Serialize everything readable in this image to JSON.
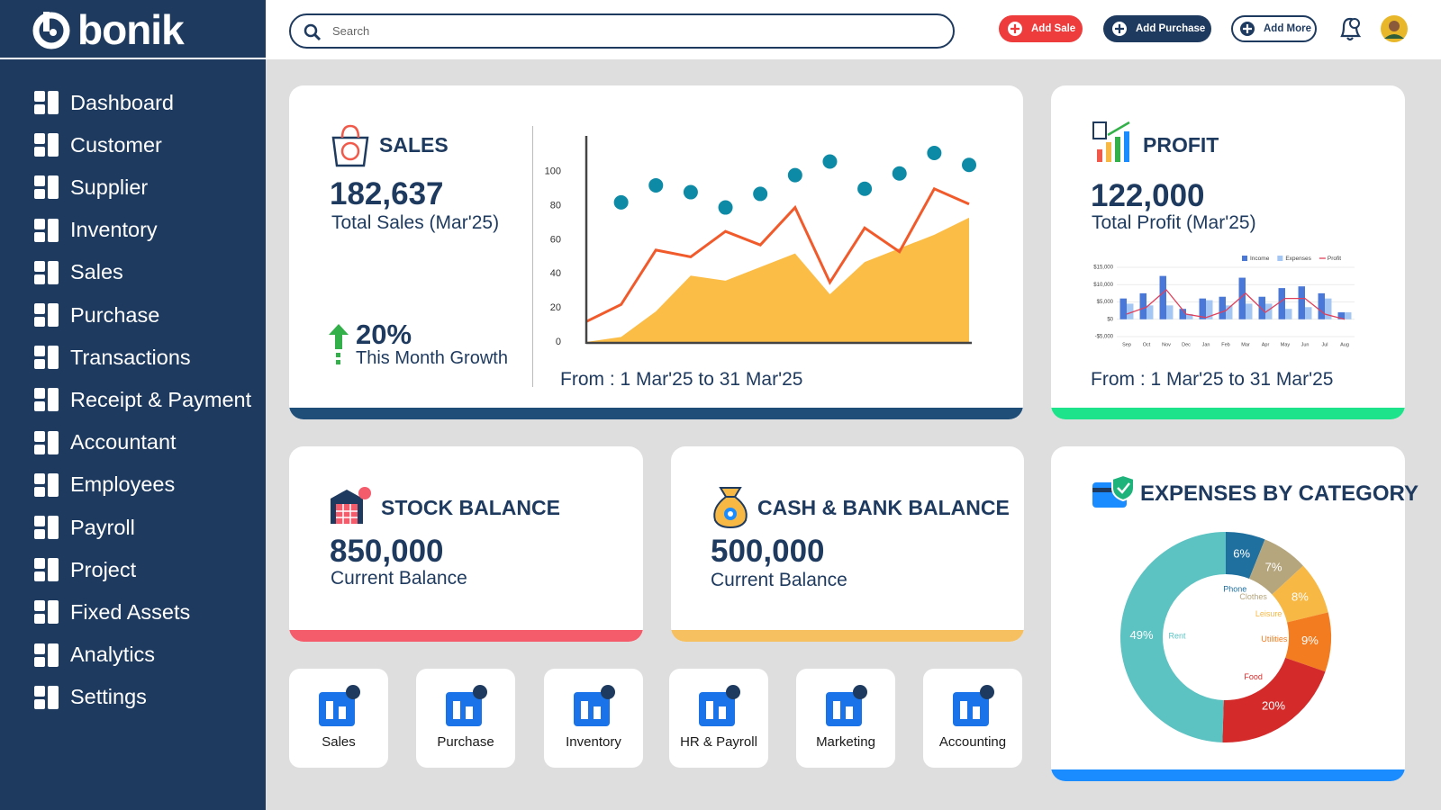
{
  "sidebar": {
    "logo": "bonik",
    "menu": [
      "Dashboard",
      "Customer",
      "Supplier",
      "Inventory",
      "Sales",
      "Purchase",
      "Transactions",
      "Receipt & Payment",
      "Accountant",
      "Employees",
      "Payroll",
      "Project",
      "Fixed Assets",
      "Analytics",
      "Settings"
    ]
  },
  "header": {
    "search_placeholder": "Search",
    "buttons": [
      "Add Sale",
      "Add Purchase",
      "Add More"
    ]
  },
  "sales_card": {
    "title": "SALES",
    "value": "182,637",
    "caption": "Total Sales (Mar'25)",
    "growth": "20%",
    "growth_caption": "This Month Growth",
    "period": "From : 1 Mar'25 to 31 Mar'25",
    "chart": {
      "type": "line",
      "ylim": [
        0,
        120
      ],
      "yticks": [
        0,
        20,
        40,
        60,
        80,
        100
      ],
      "series": [
        {
          "kind": "area",
          "color": "#fcbd47",
          "values": [
            0,
            3,
            18,
            39,
            36,
            44,
            52,
            28,
            47,
            55,
            63,
            73
          ]
        },
        {
          "kind": "line",
          "color": "#f15a2b",
          "values": [
            12,
            22,
            54,
            50,
            65,
            57,
            79,
            35,
            67,
            53,
            90,
            81
          ]
        },
        {
          "kind": "scatter",
          "color": "#0d8aa6",
          "values": [
            null,
            82,
            92,
            88,
            79,
            87,
            98,
            106,
            90,
            99,
            111,
            104
          ]
        }
      ]
    }
  },
  "profit_card": {
    "title": "PROFIT",
    "value": "122,000",
    "caption": "Total Profit (Mar'25)",
    "period": "From : 1 Mar'25 to 31 Mar'25",
    "chart": {
      "type": "bar",
      "categories": [
        "Sep",
        "Oct",
        "Nov",
        "Dec",
        "Jan",
        "Feb",
        "Mar",
        "Apr",
        "May",
        "Jun",
        "Jul",
        "Aug"
      ],
      "ylim": [
        -5000,
        15000
      ],
      "yticks": [
        {
          "value": -5000,
          "label": "-$5,000"
        },
        {
          "value": 0,
          "label": "$0"
        },
        {
          "value": 5000,
          "label": "$5,000"
        },
        {
          "value": 10000,
          "label": "$10,000"
        },
        {
          "value": 15000,
          "label": "$15,000"
        }
      ],
      "grid": true,
      "series": [
        {
          "name": "Income",
          "kind": "bar",
          "color": "#4a78d8",
          "values": [
            6000,
            7500,
            12500,
            3000,
            6000,
            6500,
            12000,
            6500,
            9000,
            9500,
            7500,
            2000
          ]
        },
        {
          "name": "Expenses",
          "kind": "bar",
          "color": "#a3c6f2",
          "values": [
            4500,
            4000,
            4000,
            1500,
            5500,
            4000,
            4500,
            4500,
            3000,
            3500,
            6000,
            2000
          ]
        },
        {
          "name": "Profit",
          "kind": "line",
          "color": "#e0405a",
          "values": [
            1500,
            3500,
            8500,
            1500,
            500,
            2500,
            7500,
            2000,
            6000,
            6000,
            1500,
            0
          ]
        }
      ]
    }
  },
  "stock_card": {
    "title": "STOCK BALANCE",
    "value": "850,000",
    "caption": "Current Balance"
  },
  "cash_card": {
    "title": "CASH & BANK BALANCE",
    "value": "500,000",
    "caption": "Current Balance"
  },
  "expenses_card": {
    "title": "EXPENSES BY CATEGORY",
    "chart": {
      "type": "donut",
      "categories": [
        "Phone",
        "Clothes",
        "Leisure",
        "Utilities",
        "Food",
        "Rent"
      ],
      "values": [
        6,
        7,
        8,
        9,
        20,
        49
      ],
      "value_labels": [
        "6%",
        "7%",
        "8%",
        "9%",
        "20%",
        "49%"
      ],
      "colors": [
        "#1f6f9f",
        "#b5a67e",
        "#f7b844",
        "#f47c20",
        "#d42a2a",
        "#5cc2c2"
      ]
    }
  },
  "quick_links": [
    "Sales",
    "Purchase",
    "Inventory",
    "HR & Payroll",
    "Marketing",
    "Accounting"
  ]
}
